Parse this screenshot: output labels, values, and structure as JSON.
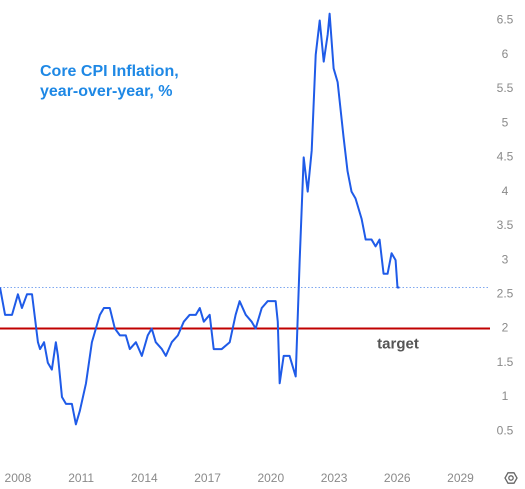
{
  "chart_data": {
    "type": "line",
    "title": [
      "Core CPI Inflation,",
      "year-over-year, %"
    ],
    "x": [
      2007.15,
      2007.39,
      2007.72,
      2008.0,
      2008.19,
      2008.43,
      2008.67,
      2008.95,
      2009.05,
      2009.24,
      2009.42,
      2009.61,
      2009.8,
      2009.9,
      2010.09,
      2010.28,
      2010.56,
      2010.75,
      2010.94,
      2011.23,
      2011.51,
      2011.7,
      2011.89,
      2012.08,
      2012.36,
      2012.6,
      2012.84,
      2013.12,
      2013.31,
      2013.6,
      2013.88,
      2014.16,
      2014.35,
      2014.54,
      2014.83,
      2015.02,
      2015.3,
      2015.59,
      2015.87,
      2016.15,
      2016.44,
      2016.63,
      2016.82,
      2017.1,
      2017.29,
      2017.67,
      2018.05,
      2018.33,
      2018.52,
      2018.81,
      2019.09,
      2019.28,
      2019.57,
      2019.85,
      2020.23,
      2020.33,
      2020.42,
      2020.61,
      2020.89,
      2021.18,
      2021.37,
      2021.56,
      2021.75,
      2021.94,
      2022.13,
      2022.32,
      2022.51,
      2022.7,
      2022.79,
      2022.98,
      2023.17,
      2023.45,
      2023.64,
      2023.83,
      2024.02,
      2024.31,
      2024.5,
      2024.78,
      2024.97,
      2025.16,
      2025.35,
      2025.54,
      2025.73,
      2025.92,
      2026.01,
      2026.1
    ],
    "series": [
      {
        "name": "Core CPI",
        "color": "#1f5be8",
        "values": [
          2.6,
          2.2,
          2.2,
          2.5,
          2.3,
          2.5,
          2.5,
          1.8,
          1.7,
          1.8,
          1.5,
          1.4,
          1.8,
          1.6,
          1.0,
          0.9,
          0.9,
          0.6,
          0.8,
          1.2,
          1.8,
          2.0,
          2.2,
          2.3,
          2.3,
          2.0,
          1.9,
          1.9,
          1.7,
          1.8,
          1.6,
          1.9,
          2.0,
          1.8,
          1.7,
          1.6,
          1.8,
          1.9,
          2.1,
          2.2,
          2.2,
          2.3,
          2.1,
          2.2,
          1.7,
          1.7,
          1.8,
          2.2,
          2.4,
          2.2,
          2.1,
          2.0,
          2.3,
          2.4,
          2.4,
          2.1,
          1.2,
          1.6,
          1.6,
          1.3,
          3.0,
          4.5,
          4.0,
          4.6,
          6.0,
          6.5,
          5.9,
          6.3,
          6.6,
          5.8,
          5.6,
          4.8,
          4.3,
          4.0,
          3.9,
          3.6,
          3.3,
          3.3,
          3.2,
          3.3,
          2.8,
          2.8,
          3.1,
          3.0,
          2.6,
          2.6
        ]
      }
    ],
    "target": {
      "value": 2,
      "label": "target",
      "color": "#c00000"
    },
    "last_value_line": {
      "value": 2.6,
      "color": "#7fa8f0"
    },
    "xlim": [
      2007.15,
      2030.4
    ],
    "xticks": [
      2008,
      2011,
      2014,
      2017,
      2020,
      2023,
      2026,
      2029
    ],
    "ylim": [
      0.05,
      6.8
    ],
    "yticks": [
      0.5,
      1,
      1.5,
      2,
      2.5,
      3,
      3.5,
      4,
      4.5,
      5,
      5.5,
      6,
      6.5
    ]
  }
}
